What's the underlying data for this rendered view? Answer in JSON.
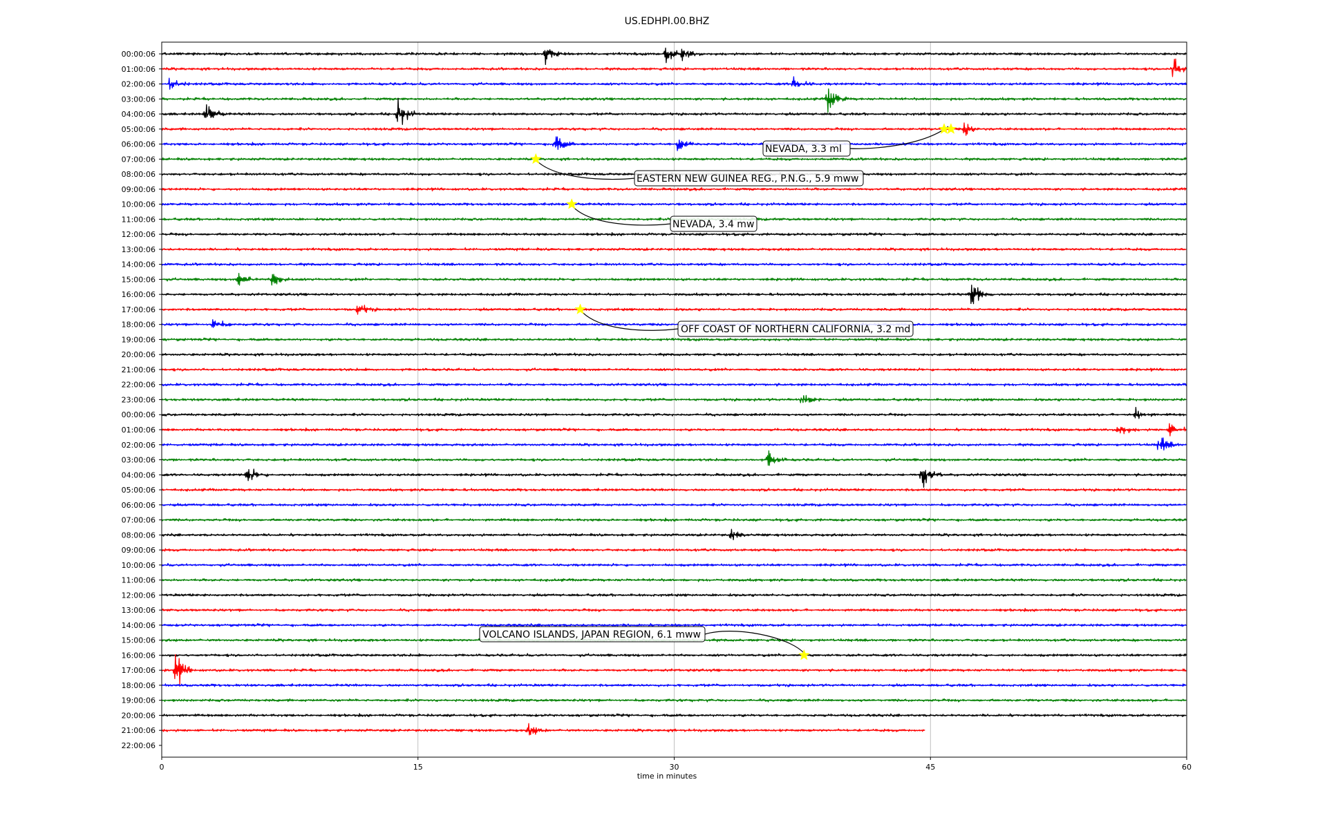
{
  "chart_data": {
    "type": "line",
    "title": "US.EDHPI.00.BHZ",
    "xlabel": "time in minutes",
    "xlim": [
      0,
      60
    ],
    "xticks": [
      0,
      15,
      30,
      45,
      60
    ],
    "grid_x": true,
    "rows": [
      "00:00:06",
      "01:00:06",
      "02:00:06",
      "03:00:06",
      "04:00:06",
      "05:00:06",
      "06:00:06",
      "07:00:06",
      "08:00:06",
      "09:00:06",
      "10:00:06",
      "11:00:06",
      "12:00:06",
      "13:00:06",
      "14:00:06",
      "15:00:06",
      "16:00:06",
      "17:00:06",
      "18:00:06",
      "19:00:06",
      "20:00:06",
      "21:00:06",
      "22:00:06",
      "23:00:06",
      "00:00:06",
      "01:00:06",
      "02:00:06",
      "03:00:06",
      "04:00:06",
      "05:00:06",
      "06:00:06",
      "07:00:06",
      "08:00:06",
      "09:00:06",
      "10:00:06",
      "11:00:06",
      "12:00:06",
      "13:00:06",
      "14:00:06",
      "15:00:06",
      "16:00:06",
      "17:00:06",
      "18:00:06",
      "19:00:06",
      "20:00:06",
      "21:00:06",
      "22:00:06"
    ],
    "trace_colors": [
      "#000000",
      "#ff0000",
      "#0000ff",
      "#008000"
    ],
    "last_trace_end_minute": 44.7,
    "bursts": [
      {
        "row": 0,
        "minute": 22.5,
        "amp": 1.3
      },
      {
        "row": 0,
        "minute": 29.5,
        "amp": 1.1
      },
      {
        "row": 0,
        "minute": 30.5,
        "amp": 1.0
      },
      {
        "row": 1,
        "minute": 59.2,
        "amp": 1.6
      },
      {
        "row": 2,
        "minute": 0.5,
        "amp": 0.9
      },
      {
        "row": 2,
        "minute": 37.0,
        "amp": 1.0
      },
      {
        "row": 3,
        "minute": 39.0,
        "amp": 2.0
      },
      {
        "row": 4,
        "minute": 2.6,
        "amp": 1.6
      },
      {
        "row": 4,
        "minute": 13.8,
        "amp": 2.0
      },
      {
        "row": 5,
        "minute": 47.0,
        "amp": 0.9
      },
      {
        "row": 6,
        "minute": 23.0,
        "amp": 1.4
      },
      {
        "row": 6,
        "minute": 30.2,
        "amp": 1.2
      },
      {
        "row": 15,
        "minute": 4.5,
        "amp": 1.1
      },
      {
        "row": 15,
        "minute": 6.5,
        "amp": 1.3
      },
      {
        "row": 16,
        "minute": 47.4,
        "amp": 2.2
      },
      {
        "row": 17,
        "minute": 11.5,
        "amp": 0.8
      },
      {
        "row": 18,
        "minute": 3.0,
        "amp": 0.9
      },
      {
        "row": 23,
        "minute": 37.5,
        "amp": 1.0
      },
      {
        "row": 24,
        "minute": 57.0,
        "amp": 0.8
      },
      {
        "row": 25,
        "minute": 56.0,
        "amp": 0.9
      },
      {
        "row": 25,
        "minute": 59.0,
        "amp": 0.9
      },
      {
        "row": 26,
        "minute": 58.4,
        "amp": 1.2
      },
      {
        "row": 27,
        "minute": 35.5,
        "amp": 1.2
      },
      {
        "row": 28,
        "minute": 5.0,
        "amp": 1.1
      },
      {
        "row": 28,
        "minute": 44.5,
        "amp": 2.2
      },
      {
        "row": 32,
        "minute": 33.3,
        "amp": 0.7
      },
      {
        "row": 41,
        "minute": 0.8,
        "amp": 2.0
      },
      {
        "row": 45,
        "minute": 21.5,
        "amp": 0.8
      }
    ],
    "events": [
      {
        "label": "NEVADA, 3.3 ml",
        "row": 5,
        "minute": 45.8,
        "second_minute": 46.2
      },
      {
        "label": "EASTERN NEW GUINEA REG., P.N.G., 5.9 mww",
        "row": 7,
        "minute": 21.9
      },
      {
        "label": "NEVADA, 3.4 mw",
        "row": 10,
        "minute": 24.0
      },
      {
        "label": "OFF COAST OF NORTHERN CALIFORNIA, 3.2 md",
        "row": 17,
        "minute": 24.5
      },
      {
        "label": "VOLCANO ISLANDS, JAPAN REGION, 6.1 mww",
        "row": 40,
        "minute": 37.6
      }
    ],
    "star_color": "#ffff00"
  }
}
